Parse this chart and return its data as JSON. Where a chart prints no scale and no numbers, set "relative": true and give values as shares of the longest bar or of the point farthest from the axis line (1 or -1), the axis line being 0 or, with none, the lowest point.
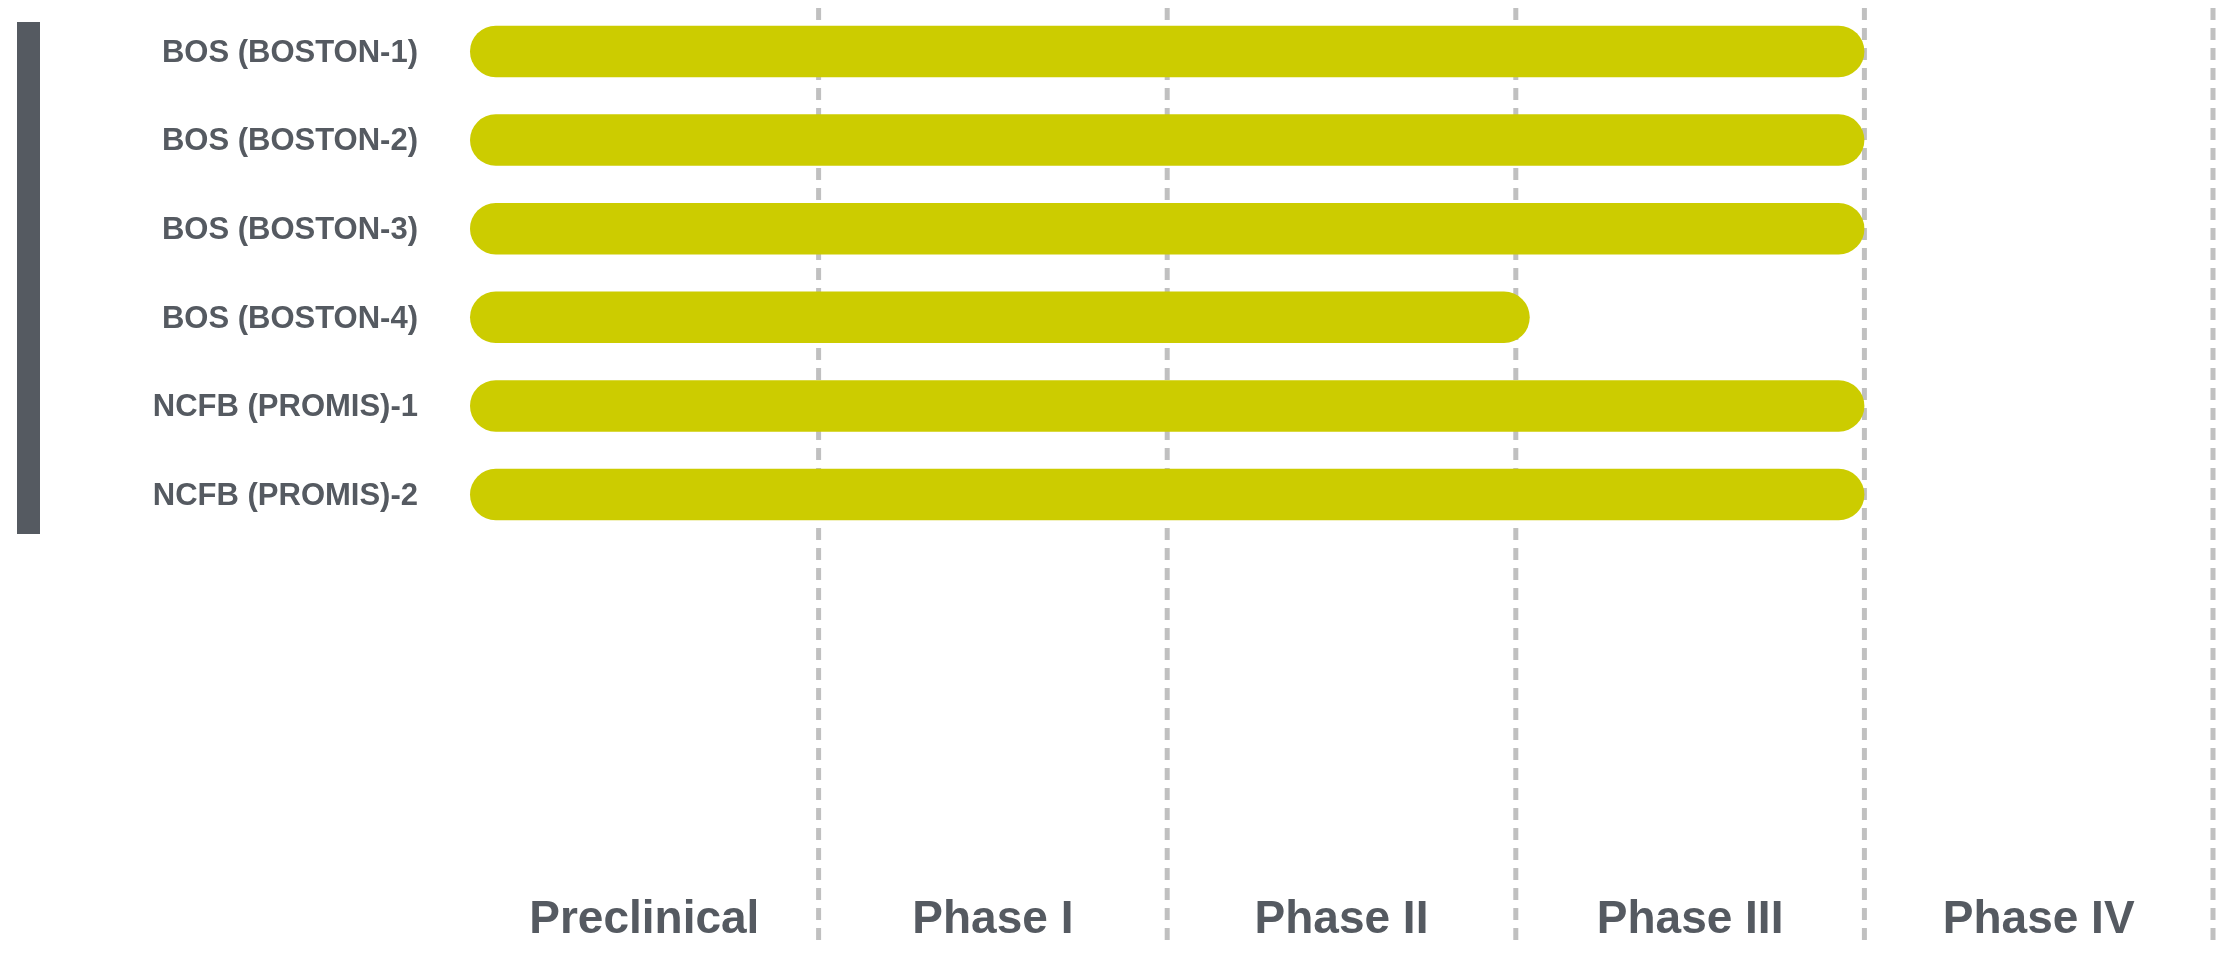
{
  "chart_data": {
    "type": "bar",
    "orientation": "horizontal",
    "relative": true,
    "categories": [
      "BOS (BOSTON-1)",
      "BOS (BOSTON-2)",
      "BOS (BOSTON-3)",
      "BOS (BOSTON-4)",
      "NCFB (PROMIS)-1",
      "NCFB (PROMIS)-2"
    ],
    "values": [
      1,
      1,
      1,
      0.76,
      1,
      1
    ],
    "color": "#cccc00",
    "annotations": [
      "Preclinical",
      "Phase I",
      "Phase II",
      "Phase III",
      "Phase IV"
    ],
    "ref_lines": [
      {
        "axis": "x",
        "value": 0.25,
        "color": "#c0c0c0",
        "line_style": "dashed"
      },
      {
        "axis": "x",
        "value": 0.5,
        "color": "#c0c0c0",
        "line_style": "dashed"
      },
      {
        "axis": "x",
        "value": 0.75,
        "color": "#c0c0c0",
        "line_style": "dashed"
      },
      {
        "axis": "x",
        "value": 1,
        "color": "#c0c0c0",
        "line_style": "dashed"
      },
      {
        "axis": "x",
        "value": 1.25,
        "color": "#c0c0c0",
        "line_style": "dashed"
      }
    ]
  }
}
